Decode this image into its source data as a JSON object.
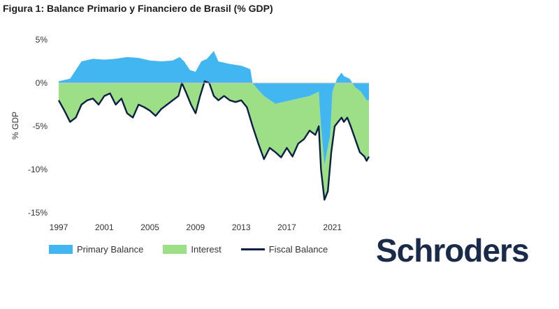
{
  "title": "Figura 1: Balance Primario y Financiero de Brasil (% GDP)",
  "brand_logo": "Schroders",
  "colors": {
    "primary": "#41b6f0",
    "interest": "#9ddf86",
    "fiscal": "#0d1f45",
    "brand": "#1a2b4a"
  },
  "chart_data": {
    "type": "area",
    "ylabel": "% GDP",
    "xlim": [
      1997,
      2024.2
    ],
    "ylim": [
      -15,
      5
    ],
    "yticks": [
      5,
      0,
      -5,
      -10,
      -15
    ],
    "ytick_labels": [
      "5%",
      "0%",
      "-5%",
      "-10%",
      "-15%"
    ],
    "xticks": [
      1997,
      2001,
      2005,
      2009,
      2013,
      2017,
      2021
    ],
    "xtick_labels": [
      "1997",
      "2001",
      "2005",
      "2009",
      "2013",
      "2017",
      "2021"
    ],
    "legend": [
      "Primary Balance",
      "Interest",
      "Fiscal Balance"
    ],
    "legend_position": "bottom",
    "series": [
      {
        "name": "Primary Balance",
        "x": [
          1997,
          1998,
          1999,
          2000,
          2001,
          2002,
          2003,
          2004,
          2005,
          2006,
          2007,
          2007.6,
          2008,
          2008.5,
          2009,
          2009.5,
          2010,
          2010.6,
          2011,
          2012,
          2013,
          2013.8,
          2014,
          2014.5,
          2015,
          2016,
          2017,
          2018,
          2019,
          2019.8,
          2020,
          2020.3,
          2020.8,
          2021,
          2021.4,
          2021.8,
          2022,
          2022.5,
          2023,
          2023.5,
          2024,
          2024.2
        ],
        "values": [
          0.2,
          0.5,
          2.5,
          2.8,
          2.7,
          2.8,
          3.0,
          2.9,
          2.6,
          2.5,
          2.6,
          3.0,
          2.5,
          1.5,
          1.3,
          2.5,
          2.8,
          3.7,
          2.5,
          2.2,
          2.0,
          1.6,
          0.0,
          -0.8,
          -1.5,
          -2.4,
          -2.1,
          -1.8,
          -1.5,
          -1.0,
          -5.0,
          -9.5,
          -6.0,
          -1.0,
          0.5,
          1.2,
          0.8,
          0.5,
          -0.5,
          -1.0,
          -2.0,
          -2.0
        ]
      },
      {
        "name": "Fiscal Balance",
        "x": [
          1997,
          1997.5,
          1998,
          1998.5,
          1999,
          1999.5,
          2000,
          2000.5,
          2001,
          2001.5,
          2002,
          2002.5,
          2003,
          2003.5,
          2004,
          2004.5,
          2005,
          2005.5,
          2006,
          2006.5,
          2007,
          2007.5,
          2007.8,
          2008.2,
          2008.6,
          2009,
          2009.4,
          2009.8,
          2010.2,
          2010.6,
          2011,
          2011.5,
          2012,
          2012.5,
          2013,
          2013.5,
          2014,
          2014.5,
          2015,
          2015.5,
          2016,
          2016.5,
          2017,
          2017.5,
          2018,
          2018.5,
          2019,
          2019.5,
          2019.8,
          2020,
          2020.3,
          2020.6,
          2020.9,
          2021.2,
          2021.5,
          2021.8,
          2022,
          2022.3,
          2022.6,
          2023,
          2023.4,
          2023.8,
          2024,
          2024.2
        ],
        "values": [
          -2.0,
          -3.2,
          -4.5,
          -4.0,
          -2.5,
          -2.0,
          -1.8,
          -2.5,
          -1.5,
          -1.2,
          -2.5,
          -1.8,
          -3.5,
          -4.0,
          -2.5,
          -2.8,
          -3.2,
          -3.8,
          -3.0,
          -2.5,
          -2.0,
          -1.5,
          0.0,
          -1.2,
          -2.5,
          -3.5,
          -1.5,
          0.2,
          0.0,
          -1.5,
          -2.0,
          -1.5,
          -2.0,
          -2.2,
          -2.0,
          -2.8,
          -5.0,
          -7.0,
          -8.8,
          -7.5,
          -8.0,
          -8.6,
          -7.5,
          -8.5,
          -7.0,
          -6.5,
          -5.5,
          -6.0,
          -5.0,
          -10.0,
          -13.5,
          -12.5,
          -8.0,
          -5.0,
          -4.5,
          -4.0,
          -4.5,
          -4.0,
          -5.0,
          -6.5,
          -8.0,
          -8.5,
          -9.0,
          -8.5
        ]
      }
    ]
  }
}
